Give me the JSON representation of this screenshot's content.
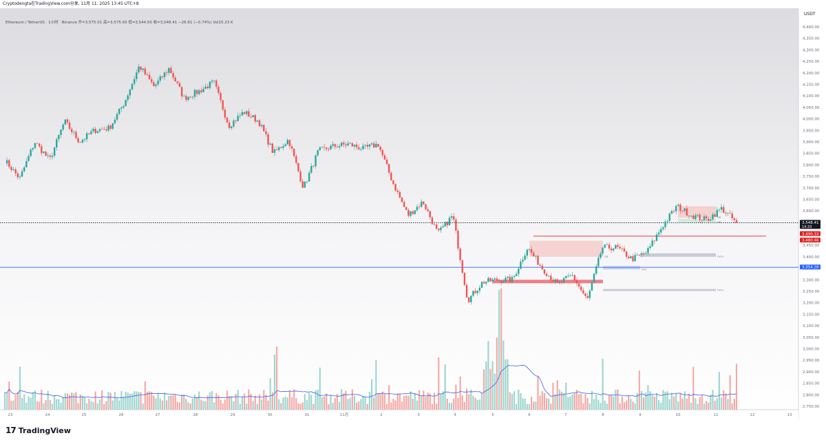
{
  "header": {
    "screenshot_credit": "Cryptodengta在TradingView.com分享, ‎11月 11, 2025 13:45 UTC+8"
  },
  "symbol_info": {
    "name": "Ethereum / TetherUS · 1小时 · Binance",
    "ohlc": "开=3,575.01  高=3,575.93  低=3,544.50  收=3,548.41  −26.61 (−0.74%)  Vol15.23 K"
  },
  "footer": {
    "brand": "TradingView",
    "logo_icon": "tradingview-logo-icon"
  },
  "colors": {
    "up": "#26a69a",
    "down": "#ef5350",
    "volume_up": "#9fd6cf",
    "volume_down": "#f4a9a6",
    "volume_ma": "#3c5ee6",
    "support_line": "#2962ff",
    "resistance_line": "#e02020",
    "supply_zone": "#ee5560",
    "price_label_bg": "#131722"
  },
  "chart_data": {
    "type": "candlestick",
    "title": "",
    "currency": "USDT",
    "timeframe": "1h",
    "x_ticks": [
      "23",
      "24",
      "25",
      "26",
      "27",
      "28",
      "29",
      "30",
      "31",
      "11月",
      "2",
      "3",
      "4",
      "5",
      "6",
      "7",
      "8",
      "9",
      "10",
      "11",
      "12",
      "13"
    ],
    "y_ticks": [
      "4,400.00",
      "4,350.00",
      "4,300.00",
      "4,250.00",
      "4,200.00",
      "4,150.00",
      "4,100.00",
      "4,050.00",
      "4,000.00",
      "3,950.00",
      "3,900.00",
      "3,850.00",
      "3,800.00",
      "3,750.00",
      "3,700.00",
      "3,650.00",
      "3,600.00",
      "3,550.00",
      "3,500.00",
      "3,450.00",
      "3,400.00",
      "3,350.00",
      "3,300.00",
      "3,250.00",
      "3,200.00",
      "3,150.00",
      "3,100.00",
      "3,050.00",
      "3,000.00",
      "2,950.00",
      "2,900.00",
      "2,850.00",
      "2,800.00",
      "2,750.00"
    ],
    "ylim": [
      2735,
      4445
    ],
    "price_path": [
      {
        "date": "10-23",
        "close": 3820
      },
      {
        "date": "10-23",
        "close": 3740
      },
      {
        "date": "10-24",
        "close": 3900
      },
      {
        "date": "10-24",
        "close": 3820
      },
      {
        "date": "10-25",
        "close": 3990
      },
      {
        "date": "10-25",
        "close": 3900
      },
      {
        "date": "10-26",
        "close": 3950
      },
      {
        "date": "10-27",
        "close": 3960
      },
      {
        "date": "10-27",
        "close": 4070
      },
      {
        "date": "10-27",
        "close": 4230
      },
      {
        "date": "10-28",
        "close": 4140
      },
      {
        "date": "10-28",
        "close": 4220
      },
      {
        "date": "10-28",
        "close": 4090
      },
      {
        "date": "10-29",
        "close": 4120
      },
      {
        "date": "10-29",
        "close": 4160
      },
      {
        "date": "10-29",
        "close": 3970
      },
      {
        "date": "10-30",
        "close": 4030
      },
      {
        "date": "10-30",
        "close": 3990
      },
      {
        "date": "10-30",
        "close": 3850
      },
      {
        "date": "10-31",
        "close": 3910
      },
      {
        "date": "10-31",
        "close": 3700
      },
      {
        "date": "10-31",
        "close": 3860
      },
      {
        "date": "11-01",
        "close": 3880
      },
      {
        "date": "11-02",
        "close": 3890
      },
      {
        "date": "11-02",
        "close": 3870
      },
      {
        "date": "11-03",
        "close": 3890
      },
      {
        "date": "11-03",
        "close": 3720
      },
      {
        "date": "11-04",
        "close": 3580
      },
      {
        "date": "11-04",
        "close": 3640
      },
      {
        "date": "11-04",
        "close": 3500
      },
      {
        "date": "11-05",
        "close": 3580
      },
      {
        "date": "11-05",
        "close": 3210
      },
      {
        "date": "11-05",
        "close": 3290
      },
      {
        "date": "11-05",
        "close": 3300
      },
      {
        "date": "11-06",
        "close": 3300
      },
      {
        "date": "11-06",
        "close": 3440
      },
      {
        "date": "11-06",
        "close": 3350
      },
      {
        "date": "11-07",
        "close": 3280
      },
      {
        "date": "11-07",
        "close": 3320
      },
      {
        "date": "11-08",
        "close": 3210
      },
      {
        "date": "11-08",
        "close": 3440
      },
      {
        "date": "11-08",
        "close": 3440
      },
      {
        "date": "11-09",
        "close": 3390
      },
      {
        "date": "11-09",
        "close": 3420
      },
      {
        "date": "11-10",
        "close": 3530
      },
      {
        "date": "11-10",
        "close": 3620
      },
      {
        "date": "11-10",
        "close": 3580
      },
      {
        "date": "11-11",
        "close": 3560
      },
      {
        "date": "11-11",
        "close": 3610
      },
      {
        "date": "11-11",
        "close": 3548.41
      }
    ],
    "volume_peaks": [
      {
        "date": "10-30",
        "label": "high"
      },
      {
        "date": "11-05",
        "label": "highest"
      }
    ],
    "price_labels": [
      {
        "value": "3,548.41",
        "sub": "14:33",
        "role": "last-price"
      },
      {
        "value": "3,490.33",
        "role": "resistance"
      },
      {
        "value": "3,480.46",
        "role": "resistance"
      },
      {
        "value": "3,354.28",
        "role": "support"
      }
    ],
    "horizontal_lines": [
      {
        "price": 3354.28,
        "color": "#2962ff",
        "style": "solid"
      },
      {
        "price": 3548.41,
        "color": "#131722",
        "style": "dotted"
      },
      {
        "price": 3490,
        "color": "#e02020",
        "style": "solid",
        "from": "11-06",
        "to": "11-12"
      }
    ],
    "zones": [
      {
        "from": "11-05",
        "to": "11-08",
        "low": 3285,
        "high": 3300,
        "color": "#ee5560",
        "label": ""
      },
      {
        "from": "11-06",
        "to": "11-08",
        "low": 3400,
        "high": 3470,
        "color": "#f4c7c5",
        "label": "OB"
      },
      {
        "from": "11-08",
        "to": "11-09",
        "low": 3345,
        "high": 3360,
        "color": "#b3c7ef",
        "label": "FVG-"
      },
      {
        "from": "11-09",
        "to": "11-11",
        "low": 3400,
        "high": 3415,
        "color": "#b8bcc5",
        "label": "FVG+"
      },
      {
        "from": "11-08",
        "to": "11-11",
        "low": 3255,
        "high": 3260,
        "color": "#b8bcc5",
        "label": "FVG+"
      },
      {
        "from": "11-10",
        "to": "11-11",
        "low": 3570,
        "high": 3620,
        "color": "#f4c7c5",
        "label": "OB"
      },
      {
        "from": "11-10",
        "to": "11-11",
        "low": 3550,
        "high": 3565,
        "color": "#c6e8d5",
        "label": "OB"
      }
    ],
    "grid": false,
    "legend": "none"
  }
}
